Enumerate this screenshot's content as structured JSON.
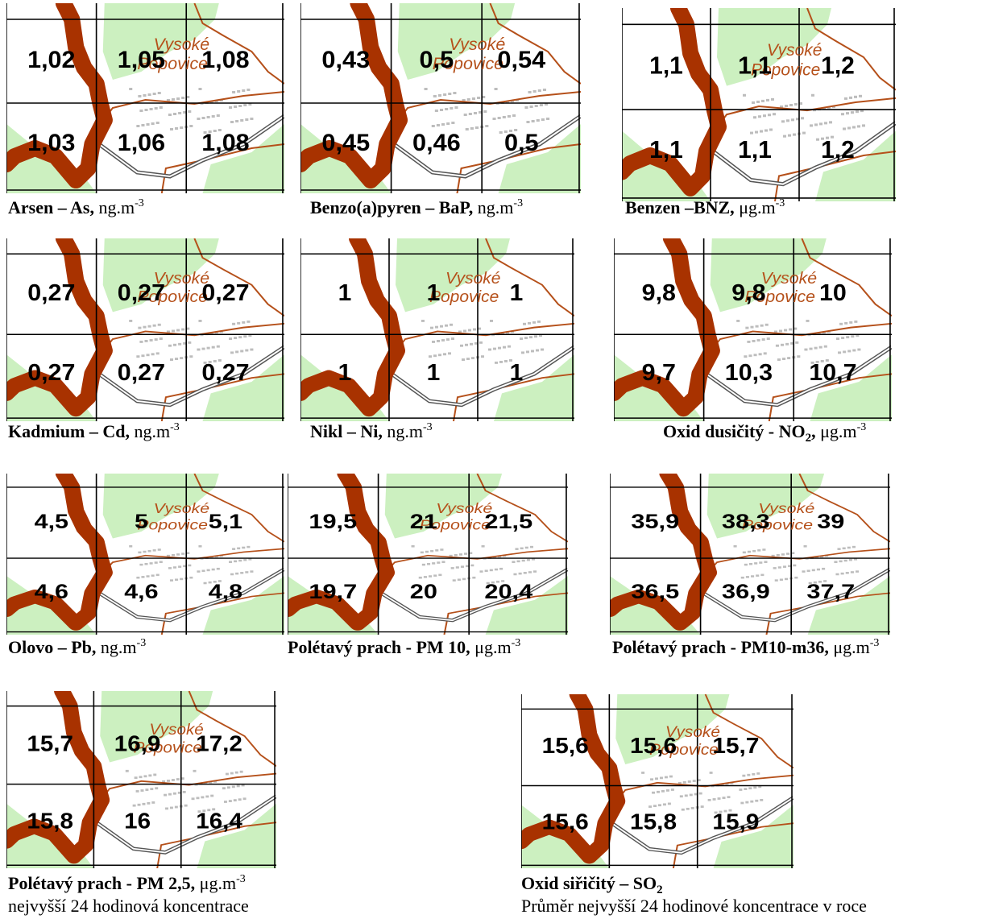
{
  "place_label": {
    "line1": "Vysoké",
    "line2": "Popovice"
  },
  "colors": {
    "forest": "#ccf0c0",
    "border": "#a83200",
    "road": "#b5501a",
    "railway": "#555555",
    "grid": "#000000"
  },
  "maps": [
    {
      "id": "as",
      "pollutant": "Arsen – As,",
      "unit": "ng.m",
      "sup": "-3",
      "values": [
        "1,02",
        "1,05",
        "1,08",
        "1,03",
        "1,06",
        "1,08"
      ]
    },
    {
      "id": "bap",
      "pollutant": "Benzo(a)pyren – BaP,",
      "unit": "ng.m",
      "sup": "-3",
      "values": [
        "0,43",
        "0,5",
        "0,54",
        "0,45",
        "0,46",
        "0,5"
      ]
    },
    {
      "id": "bnz",
      "pollutant": "Benzen –BNZ,",
      "unit": "μg.m",
      "sup": "-3",
      "values": [
        "1,1",
        "1,1",
        "1,2",
        "1,1",
        "1,1",
        "1,2"
      ]
    },
    {
      "id": "cd",
      "pollutant": "Kadmium – Cd,",
      "unit": "ng.m",
      "sup": "-3",
      "values": [
        "0,27",
        "0,27",
        "0,27",
        "0,27",
        "0,27",
        "0,27"
      ]
    },
    {
      "id": "ni",
      "pollutant": "Nikl – Ni,",
      "unit": "ng.m",
      "sup": "-3",
      "values": [
        "1",
        "1",
        "1",
        "1",
        "1",
        "1"
      ]
    },
    {
      "id": "no2",
      "pollutant": "Oxid dusičitý - NO",
      "sub": "2",
      "pollutant_tail": ",",
      "unit": "μg.m",
      "sup": "-3",
      "values": [
        "9,8",
        "9,8",
        "10",
        "9,7",
        "10,3",
        "10,7"
      ]
    },
    {
      "id": "pb",
      "pollutant": "Olovo – Pb,",
      "unit": "ng.m",
      "sup": "-3",
      "values": [
        "4,5",
        "5",
        "5,1",
        "4,6",
        "4,6",
        "4,8"
      ]
    },
    {
      "id": "pm10",
      "pollutant": "Polétavý prach - PM 10,",
      "unit": "μg.m",
      "sup": "-3",
      "values": [
        "19,5",
        "21",
        "21,5",
        "19,7",
        "20",
        "20,4"
      ]
    },
    {
      "id": "pm10m",
      "pollutant": "Polétavý prach - PM10-m36,",
      "unit": "μg.m",
      "sup": "-3",
      "values": [
        "35,9",
        "38,3",
        "39",
        "36,5",
        "36,9",
        "37,7"
      ]
    },
    {
      "id": "pm25",
      "pollutant": "Polétavý prach - PM 2,5,",
      "unit": "μg.m",
      "sup": "-3",
      "values": [
        "15,7",
        "16,9",
        "17,2",
        "15,8",
        "16",
        "16,4"
      ],
      "note": "nejvyšší 24 hodinová koncentrace"
    },
    {
      "id": "so2",
      "pollutant": "Oxid siřičitý – SO",
      "sub": "2",
      "pollutant_tail": "",
      "unit": "",
      "sup": "",
      "values": [
        "15,6",
        "15,6",
        "15,7",
        "15,6",
        "15,8",
        "15,9"
      ],
      "note": "Průměr nejvyšší 24 hodinové koncentrace v roce"
    }
  ]
}
